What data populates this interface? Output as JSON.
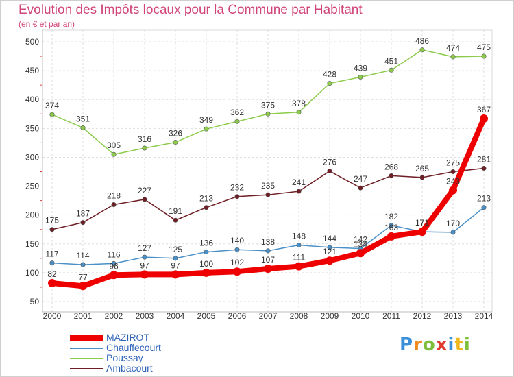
{
  "chart_data": {
    "type": "line",
    "title": "Evolution des Impôts locaux pour la Commune par Habitant",
    "subtitle": "(en € et par an)",
    "x": [
      "2000",
      "2001",
      "2002",
      "2003",
      "2004",
      "2005",
      "2006",
      "2007",
      "2008",
      "2009",
      "2010",
      "2011",
      "2012",
      "2013",
      "2014"
    ],
    "ylim": [
      50,
      500
    ],
    "yticks": [
      50,
      100,
      150,
      200,
      250,
      300,
      350,
      400,
      450,
      500
    ],
    "grid": true,
    "legend_position": "bottom-left",
    "series": [
      {
        "name": "MAZIROT",
        "color": "#ee0000",
        "values": [
          82,
          77,
          96,
          97,
          97,
          100,
          102,
          107,
          111,
          121,
          134,
          163,
          171,
          243,
          367
        ],
        "labels": [
          "82",
          "77",
          "96",
          "97",
          "97",
          "100",
          "102",
          "107",
          "111",
          "121",
          "134",
          "163",
          "171",
          "243",
          "367"
        ]
      },
      {
        "name": "Chauffecourt",
        "color": "#4a90c8",
        "values": [
          117,
          114,
          116,
          127,
          125,
          136,
          140,
          138,
          148,
          144,
          142,
          182,
          171,
          170,
          213
        ],
        "labels": [
          "117",
          "114",
          "116",
          "127",
          "125",
          "136",
          "140",
          "138",
          "148",
          "144",
          "142",
          "182",
          "171",
          "170",
          "213"
        ]
      },
      {
        "name": "Poussay",
        "color": "#8ccc4a",
        "values": [
          374,
          351,
          305,
          316,
          326,
          349,
          362,
          375,
          378,
          428,
          439,
          451,
          486,
          474,
          475
        ],
        "labels": [
          "374",
          "351",
          "305",
          "316",
          "326",
          "349",
          "362",
          "375",
          "378",
          "428",
          "439",
          "451",
          "486",
          "474",
          "475"
        ]
      },
      {
        "name": "Ambacourt",
        "color": "#6e1e24",
        "values": [
          175,
          187,
          218,
          227,
          191,
          213,
          232,
          235,
          241,
          276,
          247,
          268,
          265,
          275,
          281
        ],
        "labels": [
          "175",
          "187",
          "218",
          "227",
          "191",
          "213",
          "232",
          "235",
          "241",
          "276",
          "247",
          "268",
          "265",
          "275",
          "281"
        ]
      }
    ]
  },
  "logo": {
    "text": "Proxiti"
  }
}
